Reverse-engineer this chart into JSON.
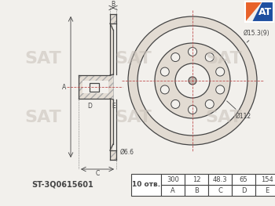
{
  "bg_color": "#f2f0ec",
  "line_color": "#888888",
  "dark_line": "#444444",
  "red_line": "#c05050",
  "part_number": "ST-3Q0615601",
  "holes_count": "10 отв.",
  "table_headers": [
    "A",
    "B",
    "C",
    "D",
    "E"
  ],
  "table_values": [
    "300",
    "12",
    "48.3",
    "65",
    "154"
  ],
  "dim_phi_outer": "Ø15.3(9)",
  "dim_phi_bolt": "Ø112",
  "dim_phi_center": "Ø6.6",
  "logo_colors": {
    "orange": "#e8622a",
    "blue": "#1e4fa0"
  },
  "watermark": "SAT",
  "hatch_color": "#aaaaaa"
}
